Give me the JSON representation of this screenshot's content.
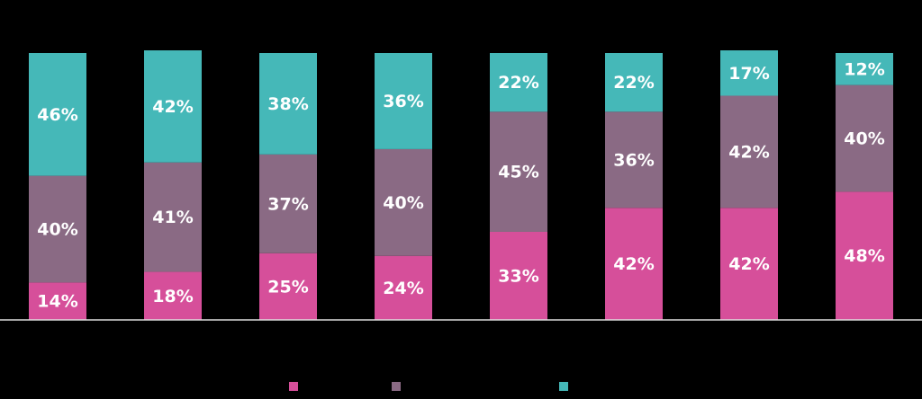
{
  "chart_data": {
    "type": "stacked_bar",
    "categories": [
      null,
      null,
      null,
      null,
      null,
      null,
      null,
      null
    ],
    "ylim": [
      0,
      100
    ],
    "series": [
      {
        "color": "#d64f9a",
        "values": [
          14,
          18,
          25,
          24,
          33,
          42,
          42,
          48
        ],
        "value_labels": [
          "14%",
          "18%",
          "25%",
          "24%",
          "33%",
          "42%",
          "42%",
          "48%"
        ]
      },
      {
        "color": "#8a6a84",
        "values": [
          40,
          41,
          37,
          40,
          45,
          36,
          42,
          40
        ],
        "value_labels": [
          "40%",
          "41%",
          "37%",
          "40%",
          "45%",
          "36%",
          "42%",
          "40%"
        ]
      },
      {
        "color": "#45b8b8",
        "values": [
          46,
          42,
          38,
          36,
          22,
          22,
          17,
          12
        ],
        "value_labels": [
          "46%",
          "42%",
          "38%",
          "36%",
          "22%",
          "22%",
          "17%",
          "12%"
        ]
      }
    ]
  }
}
